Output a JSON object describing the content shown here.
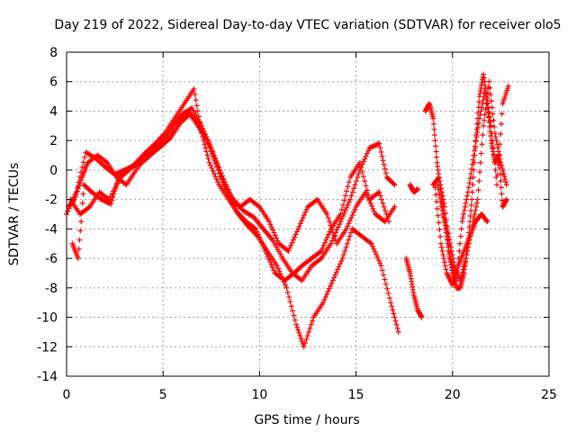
{
  "chart_data": {
    "type": "scatter",
    "title": "Day 219 of 2022, Sidereal Day-to-day VTEC variation (SDTVAR) for receiver olo5",
    "xlabel": "GPS time / hours",
    "ylabel": "SDTVAR / TECUs",
    "xlim": [
      0,
      25
    ],
    "ylim": [
      -14,
      8
    ],
    "xticks": [
      "0",
      "5",
      "10",
      "15",
      "20",
      "25"
    ],
    "yticks": [
      "-14",
      "-12",
      "-10",
      "-8",
      "-6",
      "-4",
      "-2",
      "0",
      "2",
      "4",
      "6",
      "8"
    ],
    "grid": true,
    "marker": "+",
    "color": "#ff0000",
    "series": [
      {
        "x": [
          0.0,
          0.5,
          1.0,
          1.5,
          2.0,
          2.5,
          3.0,
          3.5,
          4.0,
          4.5,
          5.0,
          5.5,
          6.0,
          6.5,
          7.0,
          7.5,
          8.0,
          8.5,
          9.0,
          9.5,
          10.0,
          10.5,
          11.0,
          11.5,
          12.0,
          12.5,
          13.0,
          13.5,
          14.0,
          14.5,
          15.0,
          15.5,
          16.0,
          16.5,
          17.0
        ],
        "y": [
          -3.0,
          -1.5,
          1.2,
          0.8,
          0.2,
          -0.3,
          0.0,
          0.3,
          0.8,
          1.5,
          2.0,
          3.0,
          3.8,
          4.2,
          3.0,
          1.5,
          -0.5,
          -1.8,
          -2.5,
          -2.0,
          -2.5,
          -3.5,
          -5.0,
          -5.5,
          -4.0,
          -2.5,
          -2.0,
          -3.0,
          -5.0,
          -4.0,
          -2.5,
          -1.5,
          -3.0,
          -3.5,
          -2.5
        ]
      },
      {
        "x": [
          0.3,
          0.6,
          0.9,
          1.3,
          1.8,
          2.3,
          2.7,
          3.2,
          3.6,
          4.1,
          4.6,
          5.1,
          5.6,
          6.1,
          6.6,
          7.0,
          7.4,
          7.9,
          8.4,
          8.9,
          9.4,
          9.9,
          10.4,
          10.9,
          11.4,
          11.9,
          12.3,
          12.8,
          13.3,
          13.8,
          14.3,
          14.8,
          15.3,
          15.8,
          16.3,
          16.8,
          17.2
        ],
        "y": [
          -5.0,
          -6.0,
          -1.0,
          -1.5,
          -2.0,
          -2.3,
          -0.5,
          0.0,
          0.5,
          1.2,
          1.8,
          2.5,
          3.5,
          4.5,
          5.5,
          2.5,
          0.5,
          -1.0,
          -2.0,
          -3.0,
          -3.8,
          -4.5,
          -5.5,
          -6.5,
          -8.0,
          -10.5,
          -12.0,
          -10.0,
          -9.0,
          -7.5,
          -6.0,
          -4.0,
          -4.5,
          -5.0,
          -6.5,
          -9.0,
          -11.0
        ]
      },
      {
        "x": [
          0.1,
          0.4,
          0.8,
          1.1,
          1.6,
          2.1,
          2.6,
          3.1,
          3.6,
          4.2,
          4.8,
          5.4,
          5.9,
          6.4,
          6.9,
          7.3,
          7.8,
          8.3,
          8.8,
          9.3,
          9.8,
          10.3,
          10.8,
          11.3,
          11.8,
          12.2,
          12.7,
          13.2,
          13.7,
          14.2,
          14.7,
          15.2,
          15.7,
          16.2,
          16.7
        ],
        "y": [
          -2.5,
          -2.0,
          -0.5,
          0.5,
          1.0,
          0.5,
          -0.5,
          -1.0,
          0.0,
          1.0,
          1.5,
          2.2,
          3.2,
          3.8,
          2.8,
          2.0,
          0.2,
          -1.5,
          -2.8,
          -3.5,
          -4.0,
          -5.5,
          -7.0,
          -7.5,
          -7.0,
          -6.5,
          -6.0,
          -5.5,
          -4.0,
          -3.0,
          -0.5,
          0.5,
          -2.0,
          -1.5,
          -3.5
        ]
      },
      {
        "x": [
          0.2,
          0.7,
          1.2,
          1.7,
          2.2,
          2.8,
          3.4,
          4.0,
          4.6,
          5.2,
          5.8,
          6.3,
          6.8,
          7.2,
          7.7,
          8.2,
          8.7,
          9.2,
          9.7,
          10.2,
          10.7,
          11.2,
          11.7,
          12.2,
          12.7,
          13.2,
          13.7,
          14.2,
          14.7,
          15.2,
          15.7,
          16.2,
          16.6,
          17.0
        ],
        "y": [
          -2.0,
          -3.0,
          -2.5,
          -1.5,
          -2.0,
          -0.5,
          0.2,
          0.6,
          1.3,
          2.0,
          3.3,
          4.0,
          3.2,
          2.2,
          0.8,
          -0.8,
          -2.2,
          -2.8,
          -3.2,
          -4.0,
          -4.8,
          -6.0,
          -7.0,
          -7.5,
          -6.5,
          -6.0,
          -5.0,
          -3.5,
          -2.0,
          0.0,
          1.5,
          1.8,
          -0.5,
          -1.0
        ]
      },
      {
        "x": [
          17.6,
          17.8,
          18.0,
          18.2,
          18.4
        ],
        "y": [
          -6.0,
          -7.0,
          -8.5,
          -9.5,
          -10.0
        ]
      },
      {
        "x": [
          17.8,
          18.0,
          18.2
        ],
        "y": [
          -1.0,
          -1.5,
          -1.3
        ]
      },
      {
        "x": [
          18.6,
          18.8,
          19.0,
          19.2,
          19.4,
          19.6,
          19.8,
          20.0,
          20.2,
          20.4,
          20.6,
          20.8,
          21.0,
          21.2,
          21.4,
          21.6,
          21.8,
          22.0,
          22.2,
          22.4,
          22.6,
          22.8
        ],
        "y": [
          4.0,
          4.5,
          3.5,
          0.5,
          -1.5,
          -3.5,
          -5.5,
          -7.0,
          -8.0,
          -8.0,
          -7.0,
          -5.0,
          -2.0,
          2.0,
          5.0,
          6.5,
          4.5,
          2.0,
          0.5,
          1.0,
          -2.5,
          -2.0
        ]
      },
      {
        "x": [
          19.0,
          19.3,
          19.6,
          19.9,
          20.2,
          20.5,
          20.8,
          21.1,
          21.4,
          21.7,
          22.0,
          22.3,
          22.6,
          22.9
        ],
        "y": [
          -1.0,
          -0.5,
          -2.5,
          -6.0,
          -7.5,
          -3.5,
          -1.5,
          1.0,
          3.5,
          5.5,
          3.0,
          -1.0,
          4.5,
          5.7
        ]
      },
      {
        "x": [
          19.2,
          19.5,
          19.8,
          20.1,
          20.4,
          20.7,
          21.0,
          21.3,
          21.6,
          21.9,
          22.2,
          22.5,
          22.8
        ],
        "y": [
          -0.8,
          -3.0,
          -4.5,
          -6.5,
          -7.5,
          -6.0,
          -4.0,
          -2.0,
          3.0,
          6.0,
          2.5,
          0.5,
          -1.0
        ]
      },
      {
        "x": [
          19.1,
          19.4,
          19.7,
          20.0,
          20.3,
          20.6,
          20.9,
          21.2,
          21.5,
          21.8
        ],
        "y": [
          -1.2,
          -5.0,
          -7.0,
          -7.8,
          -6.5,
          -5.5,
          -4.5,
          -3.5,
          -3.0,
          -3.5
        ]
      }
    ]
  }
}
